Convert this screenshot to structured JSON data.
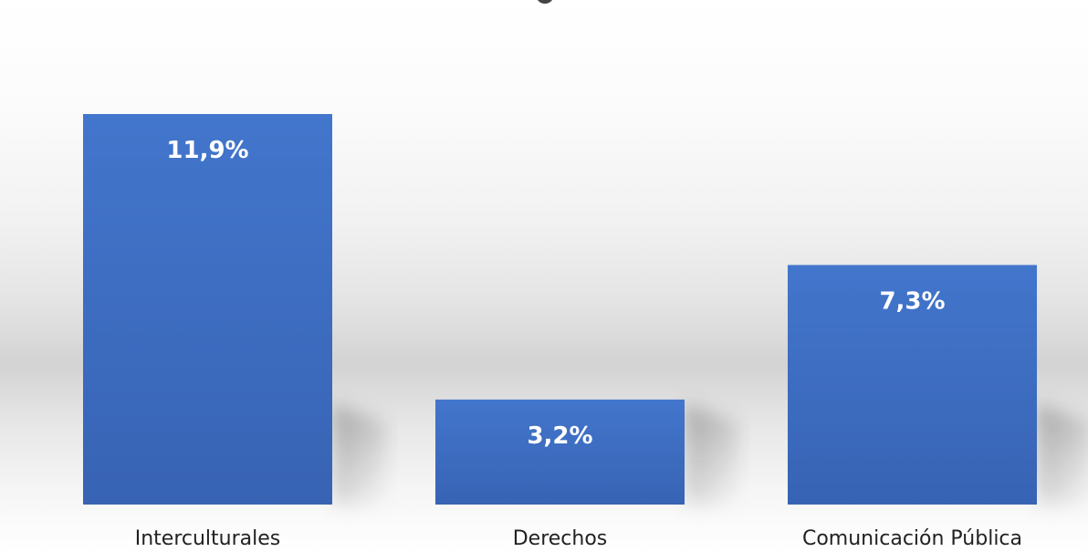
{
  "chart_data": {
    "type": "bar",
    "categories": [
      "Interculturales",
      "Derechos",
      "Comunicación Pública"
    ],
    "values": [
      11.9,
      3.2,
      7.3
    ],
    "data_labels": [
      "11,9%",
      "3,2%",
      "7,3%"
    ],
    "title": "",
    "xlabel": "",
    "ylabel": "",
    "ylim": [
      0,
      14
    ],
    "grid": false,
    "legend": "none",
    "bar_color": "#3f72c4"
  }
}
